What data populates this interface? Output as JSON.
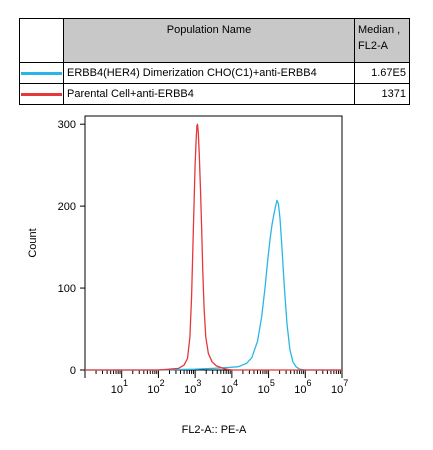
{
  "legend": {
    "header_name": "Population Name",
    "header_median": "Median ,",
    "header_median_2": "FL2-A",
    "rows": [
      {
        "name": "ERBB4(HER4) Dimerization CHO(C1)+anti-ERBB4",
        "median": "1.67E5",
        "color": "#29b6e6"
      },
      {
        "name": "Parental Cell+anti-ERBB4",
        "median": "1371",
        "color": "#e53838"
      }
    ]
  },
  "chart_data": {
    "type": "line",
    "title": "",
    "xlabel": "FL2-A:: PE-A",
    "ylabel": "Count",
    "xscale": "log",
    "xlim": [
      1,
      10000000
    ],
    "ylim": [
      0,
      310
    ],
    "yticks": [
      0,
      100,
      200,
      300
    ],
    "xticks": [
      {
        "base": "10",
        "exp": "1",
        "value": 10
      },
      {
        "base": "10",
        "exp": "2",
        "value": 100
      },
      {
        "base": "10",
        "exp": "3",
        "value": 1000
      },
      {
        "base": "10",
        "exp": "4",
        "value": 10000
      },
      {
        "base": "10",
        "exp": "5",
        "value": 100000
      },
      {
        "base": "10",
        "exp": "6",
        "value": 1000000
      },
      {
        "base": "10",
        "exp": "7",
        "value": 10000000
      }
    ],
    "series": [
      {
        "name": "Parental Cell+anti-ERBB4",
        "color": "#e53838",
        "points": [
          [
            1,
            0
          ],
          [
            100,
            0
          ],
          [
            200,
            1
          ],
          [
            350,
            2
          ],
          [
            500,
            6
          ],
          [
            620,
            14
          ],
          [
            720,
            40
          ],
          [
            800,
            90
          ],
          [
            870,
            150
          ],
          [
            940,
            210
          ],
          [
            1000,
            250
          ],
          [
            1060,
            280
          ],
          [
            1120,
            298
          ],
          [
            1160,
            300
          ],
          [
            1220,
            290
          ],
          [
            1300,
            262
          ],
          [
            1400,
            220
          ],
          [
            1500,
            175
          ],
          [
            1620,
            120
          ],
          [
            1750,
            75
          ],
          [
            1950,
            40
          ],
          [
            2300,
            20
          ],
          [
            2900,
            10
          ],
          [
            3800,
            5
          ],
          [
            5000,
            3
          ],
          [
            7000,
            1
          ],
          [
            10000,
            0
          ],
          [
            10000000,
            0
          ]
        ]
      },
      {
        "name": "ERBB4(HER4) Dimerization CHO(C1)+anti-ERBB4",
        "color": "#29b6e6",
        "points": [
          [
            1,
            0
          ],
          [
            100,
            0
          ],
          [
            1000,
            1
          ],
          [
            3000,
            2
          ],
          [
            8000,
            3
          ],
          [
            15000,
            4
          ],
          [
            25000,
            8
          ],
          [
            35000,
            15
          ],
          [
            50000,
            35
          ],
          [
            65000,
            65
          ],
          [
            80000,
            100
          ],
          [
            95000,
            135
          ],
          [
            110000,
            160
          ],
          [
            125000,
            178
          ],
          [
            140000,
            190
          ],
          [
            155000,
            200
          ],
          [
            170000,
            207
          ],
          [
            185000,
            203
          ],
          [
            205000,
            185
          ],
          [
            230000,
            150
          ],
          [
            270000,
            100
          ],
          [
            320000,
            55
          ],
          [
            380000,
            25
          ],
          [
            460000,
            10
          ],
          [
            560000,
            4
          ],
          [
            700000,
            1
          ],
          [
            1000000,
            0
          ],
          [
            10000000,
            0
          ]
        ]
      }
    ]
  }
}
